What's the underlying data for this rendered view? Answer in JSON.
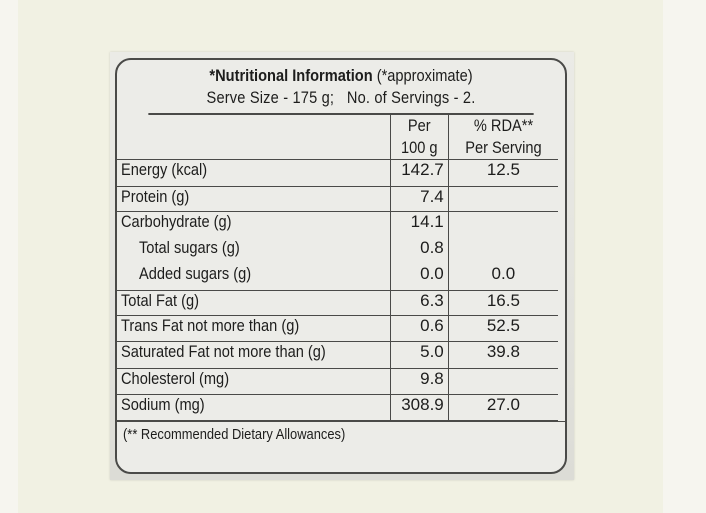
{
  "label": {
    "title_bold": "*Nutritional Information",
    "title_note": " (*approximate)",
    "serve_size": "Serve Size - 175 g;",
    "servings": "No. of Servings - 2.",
    "col_per_line1": "Per",
    "col_per_line2": "100 g",
    "col_rda_line1": "% RDA**",
    "col_rda_line2": "Per Serving",
    "rows": [
      {
        "name": "Energy (kcal)",
        "per100": "142.7",
        "rda": "12.5"
      },
      {
        "name": "Protein (g)",
        "per100": "7.4",
        "rda": ""
      },
      {
        "name": "Carbohydrate (g)",
        "per100": "14.1",
        "rda": ""
      },
      {
        "name": "Total sugars (g)",
        "per100": "0.8",
        "rda": ""
      },
      {
        "name": "Added sugars (g)",
        "per100": "0.0",
        "rda": "0.0"
      },
      {
        "name": "Total Fat (g)",
        "per100": "6.3",
        "rda": "16.5"
      },
      {
        "name": "Trans Fat not more than (g)",
        "per100": "0.6",
        "rda": "52.5"
      },
      {
        "name": "Saturated Fat not more than (g)",
        "per100": "5.0",
        "rda": "39.8"
      },
      {
        "name": "Cholesterol (mg)",
        "per100": "9.8",
        "rda": ""
      },
      {
        "name": "Sodium (mg)",
        "per100": "308.9",
        "rda": "27.0"
      }
    ],
    "footer": "(** Recommended Dietary Allowances)"
  }
}
